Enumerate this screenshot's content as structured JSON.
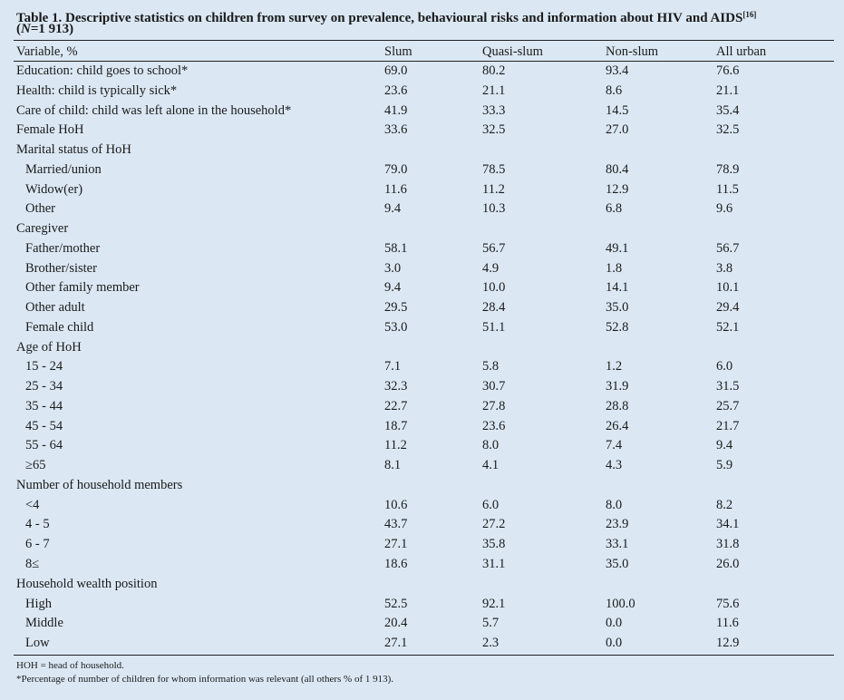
{
  "table": {
    "title": "Table 1. Descriptive statistics on children from survey on prevalence, behavioural risks and information about HIV and AIDS",
    "title_ref": "[16]",
    "subtitle_open": "(",
    "subtitle_n": "N",
    "subtitle_rest": "=1 913)",
    "header": [
      "Variable, %",
      "Slum",
      "Quasi-slum",
      "Non-slum",
      "All urban"
    ],
    "body": [
      {
        "cells": [
          "Education: child goes to school*",
          "69.0",
          "80.2",
          "93.4",
          "76.6"
        ]
      },
      {
        "cells": [
          "Health: child is typically sick*",
          "23.6",
          "21.1",
          "8.6",
          "21.1"
        ]
      },
      {
        "cells": [
          "Care of child: child was left alone in the household*",
          "41.9",
          "33.3",
          "14.5",
          "35.4"
        ]
      },
      {
        "cells": [
          "Female HoH",
          "33.6",
          "32.5",
          "27.0",
          "32.5"
        ]
      },
      {
        "group": "Marital status of HoH",
        "rows": [
          [
            "Married/union",
            "79.0",
            "78.5",
            "80.4",
            "78.9"
          ],
          [
            "Widow(er)",
            "11.6",
            "11.2",
            "12.9",
            "11.5"
          ],
          [
            "Other",
            "9.4",
            "10.3",
            "6.8",
            "9.6"
          ]
        ]
      },
      {
        "group": "Caregiver",
        "rows": [
          [
            "Father/mother",
            "58.1",
            "56.7",
            "49.1",
            "56.7"
          ],
          [
            "Brother/sister",
            "3.0",
            "4.9",
            "1.8",
            "3.8"
          ],
          [
            "Other family member",
            "9.4",
            "10.0",
            "14.1",
            "10.1"
          ],
          [
            "Other adult",
            "29.5",
            "28.4",
            "35.0",
            "29.4"
          ],
          [
            "Female child",
            "53.0",
            "51.1",
            "52.8",
            "52.1"
          ]
        ]
      },
      {
        "group": "Age of HoH",
        "rows": [
          [
            "15 - 24",
            "7.1",
            "5.8",
            "1.2",
            "6.0"
          ],
          [
            "25 - 34",
            "32.3",
            "30.7",
            "31.9",
            "31.5"
          ],
          [
            "35 - 44",
            "22.7",
            "27.8",
            "28.8",
            "25.7"
          ],
          [
            "45 - 54",
            "18.7",
            "23.6",
            "26.4",
            "21.7"
          ],
          [
            "55 - 64",
            "11.2",
            "8.0",
            "7.4",
            "9.4"
          ],
          [
            "≥65",
            "8.1",
            "4.1",
            "4.3",
            "5.9"
          ]
        ]
      },
      {
        "group": "Number of household members",
        "rows": [
          [
            "<4",
            "10.6",
            "6.0",
            "8.0",
            "8.2"
          ],
          [
            "4 - 5",
            "43.7",
            "27.2",
            "23.9",
            "34.1"
          ],
          [
            "6 - 7",
            "27.1",
            "35.8",
            "33.1",
            "31.8"
          ],
          [
            "8≤",
            "18.6",
            "31.1",
            "35.0",
            "26.0"
          ]
        ]
      },
      {
        "group": "Household wealth position",
        "rows": [
          [
            "High",
            "52.5",
            "92.1",
            "100.0",
            "75.6"
          ],
          [
            "Middle",
            "20.4",
            "5.7",
            "0.0",
            "11.6"
          ],
          [
            "Low",
            "27.1",
            "2.3",
            "0.0",
            "12.9"
          ]
        ]
      }
    ],
    "footnotes": [
      "HOH = head of household.",
      "*Percentage of number of children for whom information was relevant (all others % of 1 913)."
    ]
  }
}
